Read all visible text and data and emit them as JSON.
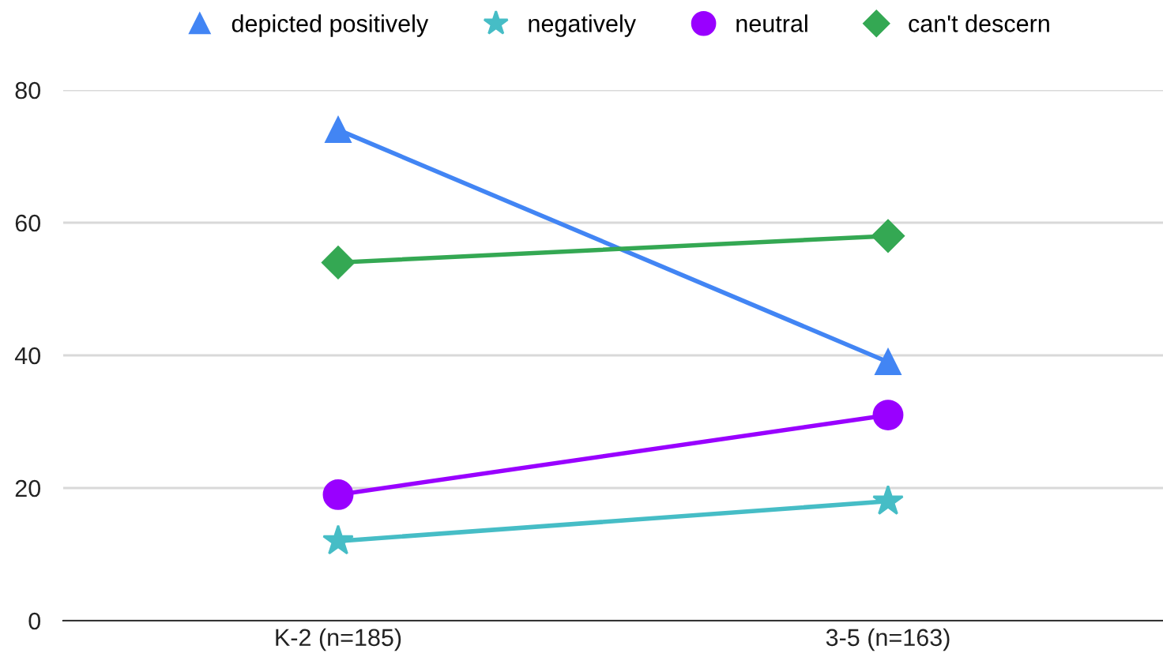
{
  "chart_data": {
    "type": "line",
    "categories": [
      "K-2 (n=185)",
      "3-5 (n=163)"
    ],
    "series": [
      {
        "name": "depicted positively",
        "color": "#4285f4",
        "marker": "triangle",
        "values": [
          74,
          39
        ]
      },
      {
        "name": "negatively",
        "color": "#46bdc6",
        "marker": "star",
        "values": [
          12,
          18
        ]
      },
      {
        "name": "neutral",
        "color": "#9900ff",
        "marker": "circle",
        "values": [
          19,
          31
        ]
      },
      {
        "name": "can't descern",
        "color": "#34a853",
        "marker": "diamond",
        "values": [
          54,
          58
        ]
      }
    ],
    "ylim": [
      0,
      80
    ],
    "yticks": [
      0,
      20,
      40,
      60,
      80
    ],
    "grid": "y",
    "legend": "top"
  }
}
